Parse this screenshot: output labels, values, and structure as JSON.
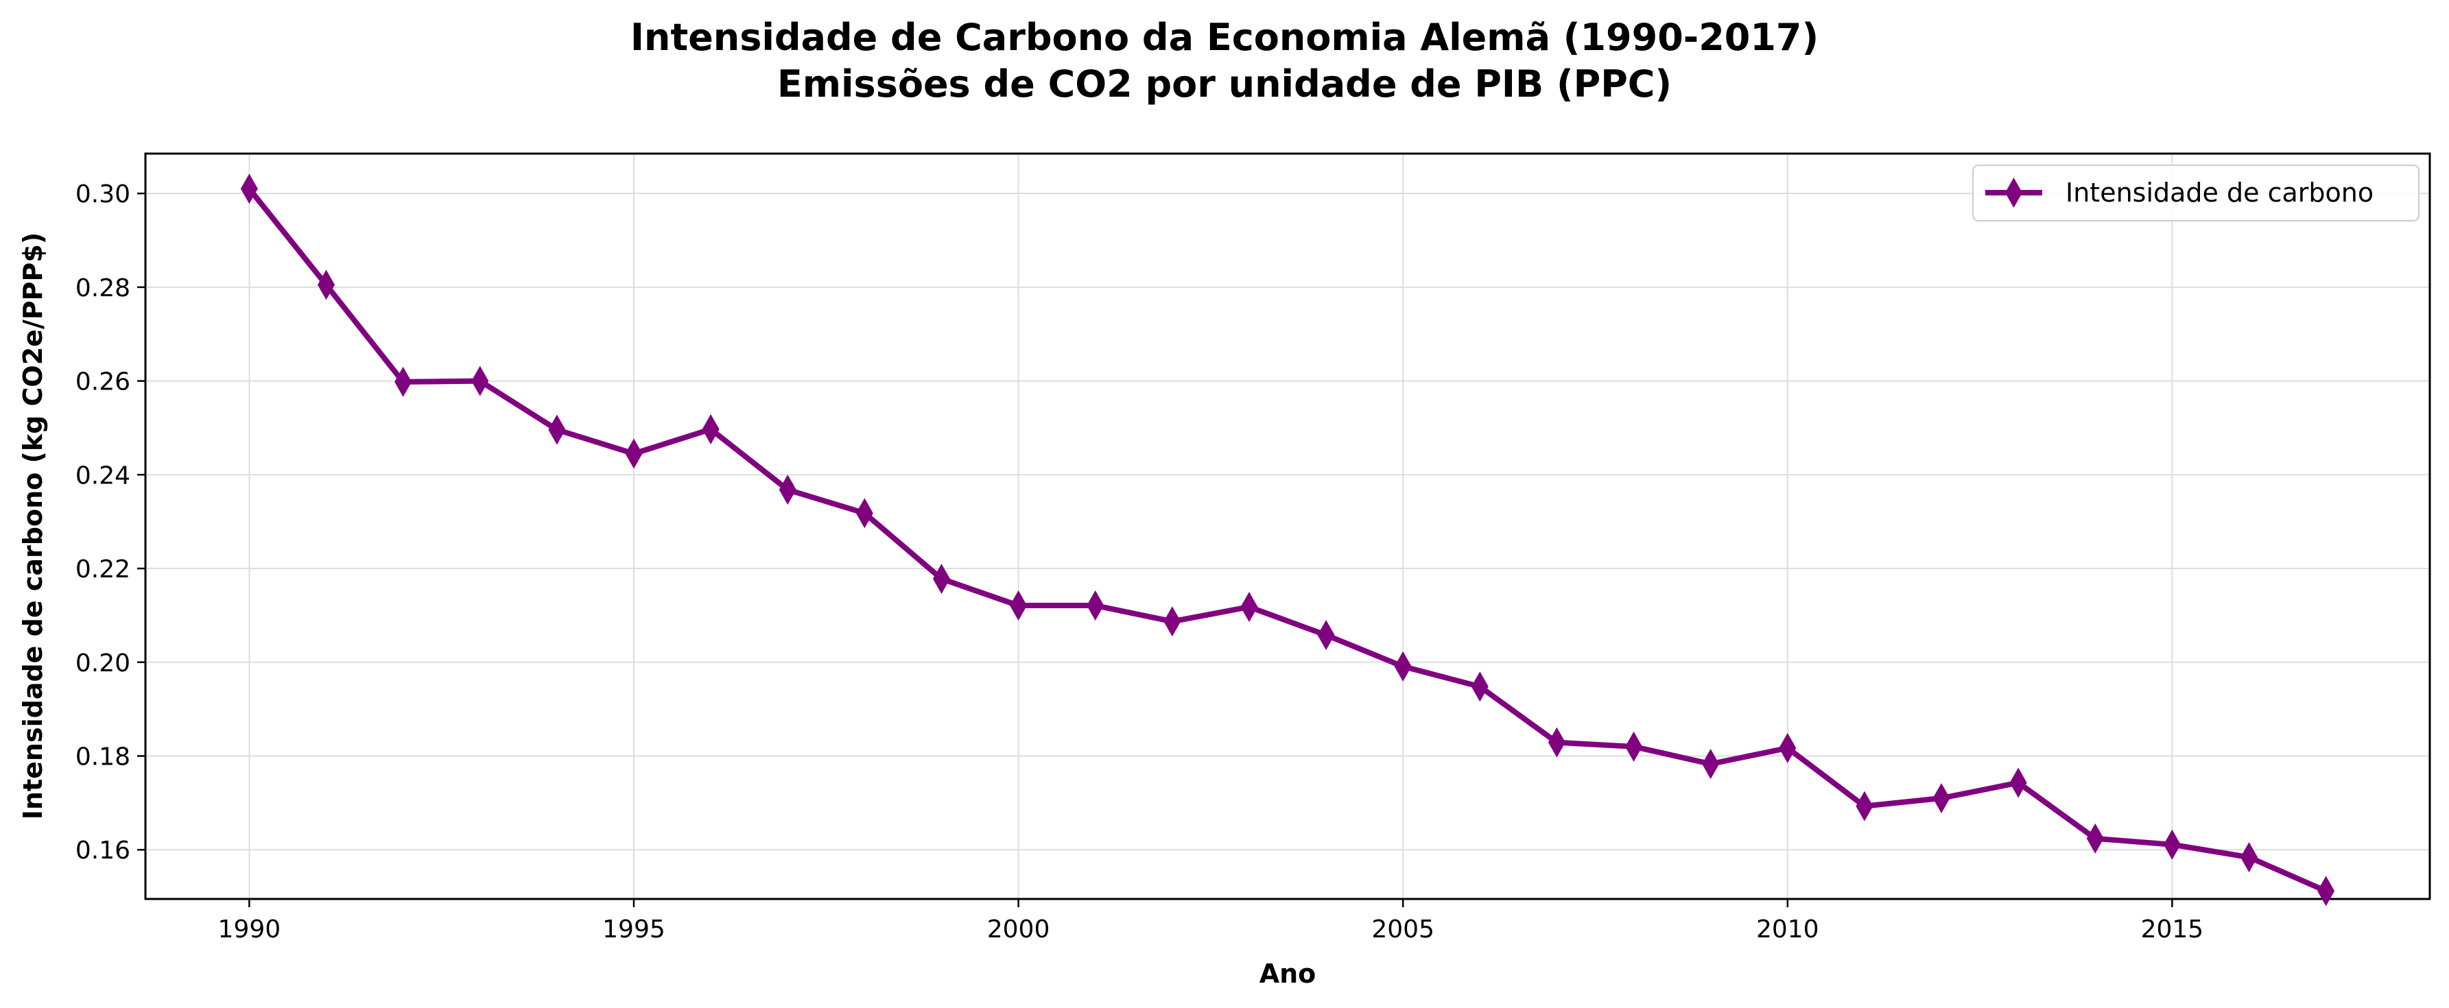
{
  "chart_data": {
    "type": "line",
    "title": "Intensidade de Carbono da Economia Alemã (1990-2017)",
    "subtitle": "Emissões de CO2 por unidade de PIB (PPC)",
    "xlabel": "Ano",
    "ylabel": "Intensidade de carbono (kg CO2e/PPP$)",
    "xlim": [
      1988.65,
      2018.35
    ],
    "ylim": [
      0.1495,
      0.3085
    ],
    "xticks": [
      "1990",
      "1995",
      "2000",
      "2005",
      "2010",
      "2015"
    ],
    "yticks": [
      "0.30",
      "0.28",
      "0.26",
      "0.24",
      "0.22",
      "0.20",
      "0.18",
      "0.16"
    ],
    "grid": true,
    "legend_position": "top-right",
    "series": [
      {
        "name": "Intensidade de carbono",
        "color": "#800080",
        "marker": "thin-diamond",
        "x": [
          1990,
          1991,
          1992,
          1993,
          1994,
          1995,
          1996,
          1997,
          1998,
          1999,
          2000,
          2001,
          2002,
          2003,
          2004,
          2005,
          2006,
          2007,
          2008,
          2009,
          2010,
          2011,
          2012,
          2013,
          2014,
          2015,
          2016,
          2017
        ],
        "values": [
          0.301,
          0.2805,
          0.2598,
          0.26,
          0.2496,
          0.2445,
          0.2497,
          0.2368,
          0.2318,
          0.2178,
          0.2121,
          0.2121,
          0.2087,
          0.2118,
          0.2058,
          0.1991,
          0.1948,
          0.1829,
          0.182,
          0.1783,
          0.1817,
          0.1693,
          0.171,
          0.1743,
          0.1624,
          0.1611,
          0.1584,
          0.1512
        ]
      }
    ]
  }
}
